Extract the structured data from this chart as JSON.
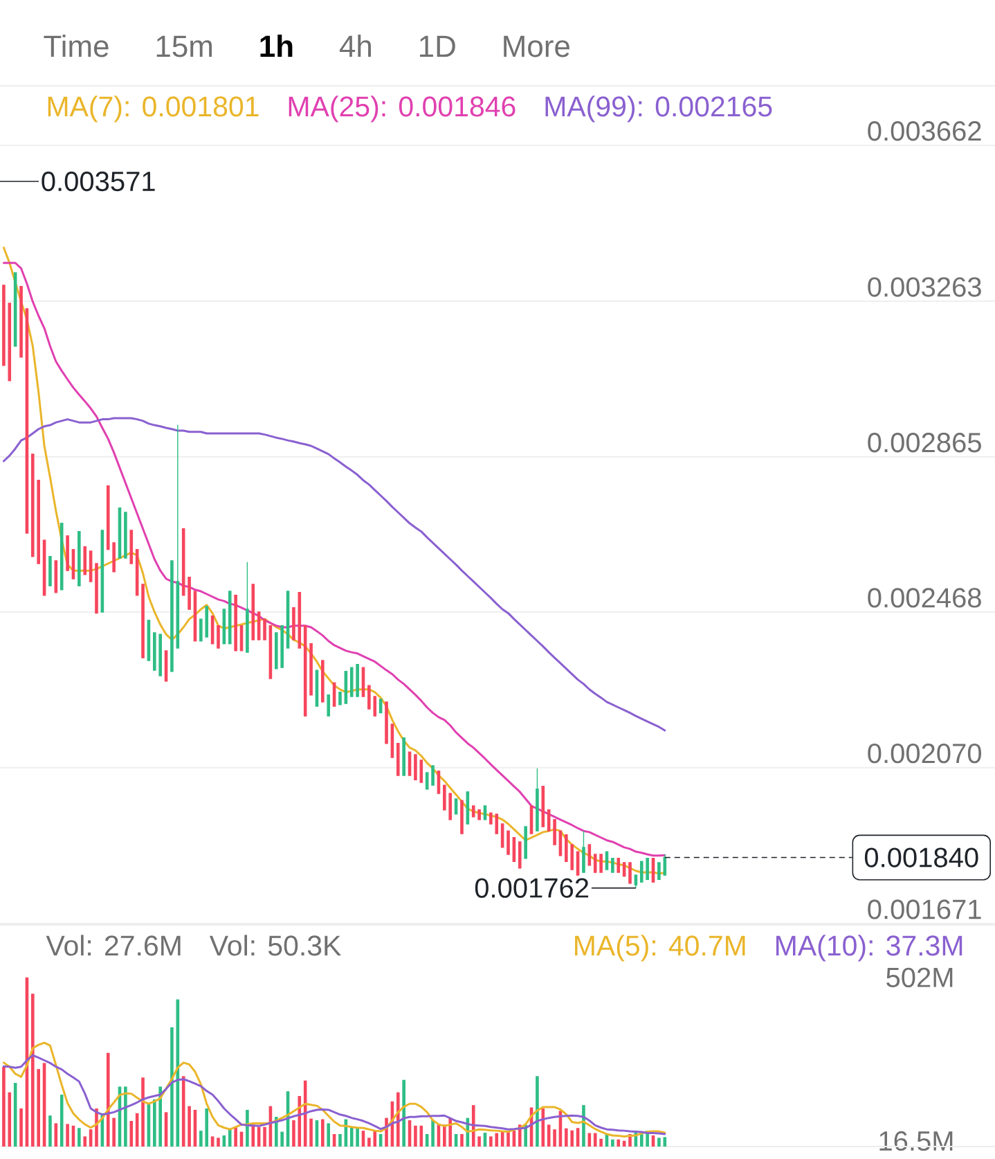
{
  "chart_data": [
    {
      "type": "candlestick",
      "categories": [
        null,
        null,
        null,
        null,
        null,
        null,
        null,
        null,
        null,
        null,
        null,
        null,
        null,
        null,
        null,
        null,
        null,
        null,
        null,
        null,
        null,
        null,
        null,
        null,
        null,
        null,
        null,
        null,
        null,
        null,
        null,
        null,
        null,
        null,
        null,
        null,
        null,
        null,
        null,
        null,
        null,
        null,
        null,
        null,
        null,
        null,
        null,
        null,
        null,
        null,
        null,
        null,
        null,
        null,
        null,
        null,
        null,
        null,
        null,
        null,
        null,
        null,
        null,
        null,
        null,
        null,
        null,
        null,
        null,
        null,
        null,
        null,
        null,
        null,
        null,
        null,
        null,
        null,
        null,
        null,
        null,
        null,
        null,
        null,
        null,
        null,
        null,
        null,
        null,
        null,
        null,
        null,
        null,
        null,
        null,
        null,
        null,
        null,
        null,
        null,
        null,
        null,
        null,
        null,
        null,
        null,
        null,
        null,
        null,
        null,
        null,
        null,
        null,
        null,
        null
      ],
      "ohlc": [
        [
          0.003304,
          0.003304,
          0.003099,
          0.003099
        ],
        [
          0.003258,
          0.003258,
          0.00306,
          0.00306
        ],
        [
          0.003148,
          0.003336,
          0.003148,
          0.003336
        ],
        [
          0.003301,
          0.003301,
          0.00312,
          0.00312
        ],
        [
          0.003244,
          0.003244,
          0.00267,
          0.00267
        ],
        [
          0.002872,
          0.002872,
          0.00261,
          0.00261
        ],
        [
          0.002805,
          0.002805,
          0.002592,
          0.002592
        ],
        [
          0.002652,
          0.002652,
          0.002511,
          0.002511
        ],
        [
          0.002535,
          0.00261,
          0.002535,
          0.00261
        ],
        [
          0.002599,
          0.002599,
          0.002518,
          0.002518
        ],
        [
          0.002525,
          0.002695,
          0.002525,
          0.002695
        ],
        [
          0.002663,
          0.002663,
          0.002574,
          0.002574
        ],
        [
          0.002628,
          0.002628,
          0.002553,
          0.002553
        ],
        [
          0.002535,
          0.002674,
          0.002535,
          0.002674
        ],
        [
          0.002635,
          0.002635,
          0.002564,
          0.002564
        ],
        [
          0.002624,
          0.002624,
          0.002546,
          0.002546
        ],
        [
          0.002592,
          0.002592,
          0.002465,
          0.002465
        ],
        [
          0.002468,
          0.002677,
          0.002468,
          0.002677
        ],
        [
          0.002791,
          0.002791,
          0.002628,
          0.002628
        ],
        [
          0.002645,
          0.002645,
          0.002571,
          0.002571
        ],
        [
          0.002606,
          0.002734,
          0.002606,
          0.002734
        ],
        [
          0.002606,
          0.002723,
          0.002606,
          0.002723
        ],
        [
          0.002677,
          0.002677,
          0.002592,
          0.002592
        ],
        [
          0.002628,
          0.002628,
          0.002511,
          0.002511
        ],
        [
          0.002539,
          0.002539,
          0.002351,
          0.002351
        ],
        [
          0.002344,
          0.002447,
          0.002344,
          0.002447
        ],
        [
          0.002319,
          0.002415,
          0.002319,
          0.002415
        ],
        [
          0.002305,
          0.002411,
          0.002305,
          0.002411
        ],
        [
          0.002369,
          0.002369,
          0.002291,
          0.002291
        ],
        [
          0.002316,
          0.002599,
          0.002316,
          0.002599
        ],
        [
          0.002376,
          0.002946,
          0.002376,
          0.002546
        ],
        [
          0.002681,
          0.002681,
          0.002511,
          0.002511
        ],
        [
          0.002557,
          0.002557,
          0.002475,
          0.002475
        ],
        [
          0.002521,
          0.002521,
          0.002394,
          0.002394
        ],
        [
          0.002394,
          0.00245,
          0.002394,
          0.00245
        ],
        [
          0.002404,
          0.002482,
          0.002404,
          0.002482
        ],
        [
          0.002458,
          0.002458,
          0.002387,
          0.002387
        ],
        [
          0.002433,
          0.002433,
          0.002376,
          0.002376
        ],
        [
          0.002387,
          0.002475,
          0.002387,
          0.002475
        ],
        [
          0.002387,
          0.002521,
          0.002387,
          0.002521
        ],
        [
          0.002511,
          0.002511,
          0.002369,
          0.002369
        ],
        [
          0.002433,
          0.002433,
          0.002369,
          0.002369
        ],
        [
          0.002365,
          0.002596,
          0.002365,
          0.002475
        ],
        [
          0.002539,
          0.002539,
          0.002397,
          0.002397
        ],
        [
          0.002468,
          0.002468,
          0.002397,
          0.002397
        ],
        [
          0.00245,
          0.00245,
          0.002397,
          0.002397
        ],
        [
          0.002433,
          0.002433,
          0.002298,
          0.002298
        ],
        [
          0.002323,
          0.002415,
          0.002323,
          0.002415
        ],
        [
          0.002326,
          0.002433,
          0.002326,
          0.002433
        ],
        [
          0.002376,
          0.002521,
          0.002376,
          0.002521
        ],
        [
          0.002479,
          0.002479,
          0.002397,
          0.002397
        ],
        [
          0.002518,
          0.002518,
          0.002376,
          0.002376
        ],
        [
          0.002433,
          0.002433,
          0.002202,
          0.002202
        ],
        [
          0.002387,
          0.002387,
          0.002256,
          0.002256
        ],
        [
          0.002227,
          0.002319,
          0.002227,
          0.002319
        ],
        [
          0.002344,
          0.002344,
          0.002238,
          0.002238
        ],
        [
          0.002202,
          0.002256,
          0.002202,
          0.002256
        ],
        [
          0.002287,
          0.002287,
          0.002227,
          0.002227
        ],
        [
          0.002231,
          0.002263,
          0.002231,
          0.002263
        ],
        [
          0.002234,
          0.002316,
          0.002234,
          0.002316
        ],
        [
          0.002252,
          0.002326,
          0.002252,
          0.002326
        ],
        [
          0.002252,
          0.002334,
          0.002252,
          0.002334
        ],
        [
          0.002326,
          0.002326,
          0.002252,
          0.002252
        ],
        [
          0.00228,
          0.00228,
          0.00222,
          0.00222
        ],
        [
          0.002252,
          0.002252,
          0.002202,
          0.002202
        ],
        [
          0.00221,
          0.002245,
          0.00221,
          0.002245
        ],
        [
          0.002238,
          0.002238,
          0.002132,
          0.002132
        ],
        [
          0.002181,
          0.002181,
          0.002096,
          0.002096
        ],
        [
          0.002132,
          0.002132,
          0.00205,
          0.00205
        ],
        [
          0.00205,
          0.002146,
          0.00205,
          0.002146
        ],
        [
          0.00211,
          0.00211,
          0.00205,
          0.00205
        ],
        [
          0.002103,
          0.002103,
          0.002039,
          0.002039
        ],
        [
          0.002089,
          0.002089,
          0.002032,
          0.002032
        ],
        [
          0.002015,
          0.002057,
          0.002015,
          0.002057
        ],
        [
          0.002025,
          0.002075,
          0.002025,
          0.002075
        ],
        [
          0.002061,
          0.002061,
          0.002004,
          0.002004
        ],
        [
          0.002025,
          0.002025,
          0.001962,
          0.001962
        ],
        [
          0.002004,
          0.002004,
          0.001937,
          0.001937
        ],
        [
          0.001951,
          0.00199,
          0.001951,
          0.00199
        ],
        [
          0.001986,
          0.001986,
          0.001901,
          0.001901
        ],
        [
          0.001926,
          0.002008,
          0.001926,
          0.002008
        ],
        [
          0.001972,
          0.001972,
          0.001944,
          0.001944
        ],
        [
          0.001962,
          0.001962,
          0.001937,
          0.001937
        ],
        [
          0.001937,
          0.001972,
          0.001937,
          0.001972
        ],
        [
          0.001954,
          0.001954,
          0.001926,
          0.001926
        ],
        [
          0.001951,
          0.001951,
          0.001901,
          0.001901
        ],
        [
          0.001926,
          0.001926,
          0.001866,
          0.001866
        ],
        [
          0.001908,
          0.001908,
          0.001848,
          0.001848
        ],
        [
          0.001891,
          0.001891,
          0.00183,
          0.00183
        ],
        [
          0.00188,
          0.00188,
          0.001813,
          0.001813
        ],
        [
          0.001838,
          0.001919,
          0.001838,
          0.001919
        ],
        [
          0.001972,
          0.001972,
          0.001901,
          0.001901
        ],
        [
          0.001908,
          0.002068,
          0.001908,
          0.002015
        ],
        [
          0.002022,
          0.002022,
          0.001919,
          0.001919
        ],
        [
          0.001962,
          0.001962,
          0.001908,
          0.001908
        ],
        [
          0.001937,
          0.001937,
          0.001873,
          0.001873
        ],
        [
          0.001908,
          0.001908,
          0.001845,
          0.001845
        ],
        [
          0.001898,
          0.001898,
          0.00183,
          0.00183
        ],
        [
          0.001873,
          0.001873,
          0.001809,
          0.001809
        ],
        [
          0.001855,
          0.001855,
          0.001795,
          0.001795
        ],
        [
          0.001802,
          0.001908,
          0.001802,
          0.001866
        ],
        [
          0.001873,
          0.001873,
          0.00182,
          0.00182
        ],
        [
          0.001848,
          0.001848,
          0.001802,
          0.001802
        ],
        [
          0.001848,
          0.001848,
          0.001802,
          0.001802
        ],
        [
          0.001809,
          0.001855,
          0.001809,
          0.001855
        ],
        [
          0.001802,
          0.001838,
          0.001802,
          0.001838
        ],
        [
          0.001838,
          0.001838,
          0.001802,
          0.001802
        ],
        [
          0.001827,
          0.001827,
          0.001792,
          0.001792
        ],
        [
          0.001827,
          0.001827,
          0.001774,
          0.001774
        ],
        [
          0.00177,
          0.001795,
          0.001762,
          0.001795
        ],
        [
          0.001777,
          0.00183,
          0.001777,
          0.00183
        ],
        [
          0.001784,
          0.001838,
          0.001784,
          0.001838
        ],
        [
          0.001838,
          0.001838,
          0.001777,
          0.001777
        ],
        [
          0.001784,
          0.001827,
          0.001784,
          0.001827
        ],
        [
          0.001795,
          0.001848,
          0.001795,
          0.00184
        ]
      ],
      "colors": [
        "#f6465d",
        "#f6465d",
        "#2ebd85",
        "#f6465d",
        "#f6465d",
        "#f6465d",
        "#f6465d",
        "#f6465d",
        "#2ebd85",
        "#f6465d",
        "#2ebd85",
        "#f6465d",
        "#f6465d",
        "#2ebd85",
        "#f6465d",
        "#f6465d",
        "#f6465d",
        "#2ebd85",
        "#f6465d",
        "#f6465d",
        "#2ebd85",
        "#2ebd85",
        "#f6465d",
        "#f6465d",
        "#f6465d",
        "#2ebd85",
        "#2ebd85",
        "#2ebd85",
        "#f6465d",
        "#2ebd85",
        "#2ebd85",
        "#f6465d",
        "#f6465d",
        "#f6465d",
        "#2ebd85",
        "#2ebd85",
        "#f6465d",
        "#f6465d",
        "#2ebd85",
        "#2ebd85",
        "#f6465d",
        "#f6465d",
        "#2ebd85",
        "#f6465d",
        "#f6465d",
        "#f6465d",
        "#f6465d",
        "#2ebd85",
        "#2ebd85",
        "#2ebd85",
        "#f6465d",
        "#f6465d",
        "#f6465d",
        "#f6465d",
        "#2ebd85",
        "#f6465d",
        "#2ebd85",
        "#f6465d",
        "#2ebd85",
        "#2ebd85",
        "#2ebd85",
        "#2ebd85",
        "#f6465d",
        "#f6465d",
        "#f6465d",
        "#2ebd85",
        "#f6465d",
        "#f6465d",
        "#f6465d",
        "#2ebd85",
        "#f6465d",
        "#f6465d",
        "#f6465d",
        "#2ebd85",
        "#2ebd85",
        "#f6465d",
        "#f6465d",
        "#f6465d",
        "#2ebd85",
        "#f6465d",
        "#2ebd85",
        "#f6465d",
        "#f6465d",
        "#2ebd85",
        "#f6465d",
        "#f6465d",
        "#f6465d",
        "#f6465d",
        "#f6465d",
        "#f6465d",
        "#2ebd85",
        "#f6465d",
        "#2ebd85",
        "#f6465d",
        "#f6465d",
        "#f6465d",
        "#f6465d",
        "#f6465d",
        "#f6465d",
        "#f6465d",
        "#2ebd85",
        "#f6465d",
        "#f6465d",
        "#f6465d",
        "#2ebd85",
        "#2ebd85",
        "#f6465d",
        "#f6465d",
        "#f6465d",
        "#2ebd85",
        "#2ebd85",
        "#2ebd85",
        "#f6465d",
        "#2ebd85",
        "#2ebd85"
      ],
      "series": [
        {
          "name": "MA(7): 0.001801",
          "type": "line",
          "color": "#eab52a",
          "values": [
            0.0034,
            0.003361,
            0.003311,
            0.003262,
            0.003216,
            0.003148,
            0.003031,
            0.002893,
            0.002812,
            0.002727,
            0.002652,
            0.002589,
            0.002574,
            0.002574,
            0.002574,
            0.002574,
            0.002578,
            0.002585,
            0.002592,
            0.002599,
            0.002606,
            0.002613,
            0.00262,
            0.002613,
            0.002567,
            0.002507,
            0.002468,
            0.002436,
            0.002411,
            0.002397,
            0.002411,
            0.002429,
            0.00245,
            0.002461,
            0.002475,
            0.002486,
            0.002465,
            0.002433,
            0.002426,
            0.002429,
            0.002433,
            0.002436,
            0.00244,
            0.002443,
            0.002447,
            0.00245,
            0.00244,
            0.002429,
            0.002422,
            0.002411,
            0.002397,
            0.00239,
            0.00238,
            0.002362,
            0.002341,
            0.002316,
            0.002298,
            0.00228,
            0.00227,
            0.002263,
            0.002266,
            0.00227,
            0.00227,
            0.00227,
            0.002263,
            0.002249,
            0.002227,
            0.002192,
            0.002163,
            0.002139,
            0.002121,
            0.002114,
            0.0021,
            0.002082,
            0.002068,
            0.00205,
            0.002036,
            0.002018,
            0.002001,
            0.001983,
            0.001965,
            0.001958,
            0.001954,
            0.001951,
            0.001947,
            0.001944,
            0.001937,
            0.001926,
            0.001912,
            0.001898,
            0.001884,
            0.001891,
            0.001898,
            0.001905,
            0.001908,
            0.001912,
            0.001908,
            0.001887,
            0.001873,
            0.001862,
            0.001852,
            0.001845,
            0.001834,
            0.00183,
            0.00183,
            0.001827,
            0.001823,
            0.00182,
            0.001813,
            0.001806,
            0.001802,
            0.001802,
            0.001802,
            0.001799,
            0.001801
          ]
        },
        {
          "name": "MA(25): 0.001846",
          "type": "line",
          "color": "#e040b0",
          "values": [
            0.003361,
            0.003361,
            0.003361,
            0.003347,
            0.003308,
            0.003262,
            0.003226,
            0.003194,
            0.003148,
            0.003109,
            0.003085,
            0.003063,
            0.003042,
            0.003024,
            0.003007,
            0.002989,
            0.002968,
            0.002939,
            0.002911,
            0.002876,
            0.002837,
            0.002798,
            0.002759,
            0.00272,
            0.002681,
            0.002642,
            0.002603,
            0.002574,
            0.002553,
            0.002546,
            0.002543,
            0.002535,
            0.002532,
            0.002525,
            0.002521,
            0.002514,
            0.002507,
            0.0025,
            0.002496,
            0.002489,
            0.002486,
            0.002479,
            0.002472,
            0.002465,
            0.002458,
            0.002447,
            0.00244,
            0.002433,
            0.002429,
            0.002429,
            0.002433,
            0.002433,
            0.002433,
            0.002429,
            0.002419,
            0.002408,
            0.002394,
            0.002383,
            0.002376,
            0.002369,
            0.002365,
            0.002362,
            0.002355,
            0.002348,
            0.002341,
            0.00233,
            0.002319,
            0.002309,
            0.002295,
            0.002284,
            0.00227,
            0.002256,
            0.002241,
            0.002224,
            0.00221,
            0.002199,
            0.002192,
            0.002178,
            0.00216,
            0.002146,
            0.002132,
            0.002121,
            0.002107,
            0.002093,
            0.002078,
            0.002064,
            0.00205,
            0.002036,
            0.002022,
            0.002008,
            0.00199,
            0.001972,
            0.001965,
            0.001958,
            0.001951,
            0.001944,
            0.001937,
            0.00193,
            0.001923,
            0.001915,
            0.001908,
            0.001905,
            0.001898,
            0.001891,
            0.001884,
            0.00188,
            0.001873,
            0.001866,
            0.001862,
            0.001855,
            0.001852,
            0.001848,
            0.001845,
            0.001845,
            0.001846
          ]
        },
        {
          "name": "MA(99): 0.002165",
          "type": "line",
          "color": "#8a60d0",
          "values": [
            0.002854,
            0.002868,
            0.002886,
            0.002907,
            0.002914,
            0.002925,
            0.002936,
            0.002943,
            0.002946,
            0.002953,
            0.002957,
            0.002961,
            0.002957,
            0.002953,
            0.002953,
            0.002953,
            0.002957,
            0.002961,
            0.002961,
            0.002964,
            0.002964,
            0.002964,
            0.002964,
            0.002961,
            0.002957,
            0.00295,
            0.002946,
            0.002943,
            0.002939,
            0.002936,
            0.002932,
            0.002932,
            0.002929,
            0.002929,
            0.002929,
            0.002925,
            0.002925,
            0.002925,
            0.002925,
            0.002925,
            0.002925,
            0.002925,
            0.002925,
            0.002925,
            0.002925,
            0.002922,
            0.002918,
            0.002914,
            0.002911,
            0.002907,
            0.002904,
            0.0029,
            0.002897,
            0.002893,
            0.002886,
            0.002879,
            0.002872,
            0.002861,
            0.002851,
            0.00284,
            0.00283,
            0.002819,
            0.002805,
            0.002794,
            0.00278,
            0.002766,
            0.002752,
            0.002737,
            0.002723,
            0.002709,
            0.002695,
            0.002684,
            0.002674,
            0.002659,
            0.002645,
            0.002631,
            0.002617,
            0.002603,
            0.002589,
            0.002574,
            0.00256,
            0.002546,
            0.002532,
            0.002518,
            0.002504,
            0.002489,
            0.002475,
            0.002465,
            0.00245,
            0.002436,
            0.002422,
            0.002408,
            0.002394,
            0.00238,
            0.002365,
            0.002351,
            0.002337,
            0.002323,
            0.002309,
            0.002295,
            0.002284,
            0.00227,
            0.002259,
            0.002249,
            0.002238,
            0.002231,
            0.002224,
            0.002217,
            0.00221,
            0.002202,
            0.002195,
            0.002188,
            0.002181,
            0.002174,
            0.002165
          ]
        }
      ],
      "ylim": [
        0.001671,
        0.003814
      ],
      "yticks": [
        0.001671,
        {
          "value": 0.00207,
          "label": "0.002070"
        },
        0.002468,
        0.002865,
        0.003263,
        0.003662
      ],
      "grid": "y",
      "legend": "top",
      "tick_labels": "y",
      "annotations": [
        "Time",
        "15m",
        "1h",
        "4h",
        "1D",
        "More",
        "0.003571",
        "0.001762"
      ],
      "ref_lines": [
        {
          "axis": "y",
          "value": 0.00184,
          "label": "0.001840",
          "line_style": "dashed",
          "color": "#1e2329"
        }
      ]
    },
    {
      "type": "bar",
      "categories": [
        null,
        null,
        null,
        null,
        null,
        null,
        null,
        null,
        null,
        null,
        null,
        null,
        null,
        null,
        null,
        null,
        null,
        null,
        null,
        null,
        null,
        null,
        null,
        null,
        null,
        null,
        null,
        null,
        null,
        null,
        null,
        null,
        null,
        null,
        null,
        null,
        null,
        null,
        null,
        null,
        null,
        null,
        null,
        null,
        null,
        null,
        null,
        null,
        null,
        null,
        null,
        null,
        null,
        null,
        null,
        null,
        null,
        null,
        null,
        null,
        null,
        null,
        null,
        null,
        null,
        null,
        null,
        null,
        null,
        null,
        null,
        null,
        null,
        null,
        null,
        null,
        null,
        null,
        null,
        null,
        null,
        null,
        null,
        null,
        null,
        null,
        null,
        null,
        null,
        null,
        null,
        null,
        null,
        null,
        null,
        null,
        null,
        null,
        null,
        null,
        null,
        null,
        null,
        null,
        null,
        null,
        null,
        null,
        null,
        null,
        null,
        null,
        null,
        null,
        null
      ],
      "series": [
        {
          "type": "bar",
          "values": [
            237,
            161,
            189,
            113,
            502,
            454,
            230,
            248,
            92,
            69,
            154,
            67,
            62,
            55,
            30,
            51,
            113,
            99,
            278,
            85,
            178,
            178,
            76,
            99,
            205,
            129,
            140,
            178,
            102,
            354,
            437,
            209,
            120,
            109,
            47,
            113,
            30,
            26,
            33,
            51,
            58,
            44,
            109,
            65,
            58,
            58,
            120,
            88,
            44,
            164,
            78,
            150,
            196,
            83,
            78,
            81,
            69,
            37,
            37,
            81,
            58,
            54,
            47,
            26,
            47,
            37,
            85,
            134,
            161,
            198,
            78,
            62,
            62,
            37,
            78,
            65,
            65,
            85,
            37,
            37,
            85,
            123,
            30,
            41,
            30,
            40,
            44,
            44,
            47,
            65,
            65,
            116,
            209,
            113,
            65,
            51,
            106,
            54,
            48,
            55,
            123,
            40,
            40,
            23,
            37,
            21,
            21,
            17,
            37,
            47,
            37,
            47,
            33,
            26,
            28
          ],
          "colors": [
            "#f6465d",
            "#f6465d",
            "#2ebd85",
            "#f6465d",
            "#f6465d",
            "#f6465d",
            "#f6465d",
            "#f6465d",
            "#2ebd85",
            "#f6465d",
            "#2ebd85",
            "#f6465d",
            "#f6465d",
            "#2ebd85",
            "#f6465d",
            "#f6465d",
            "#f6465d",
            "#2ebd85",
            "#f6465d",
            "#f6465d",
            "#2ebd85",
            "#2ebd85",
            "#f6465d",
            "#f6465d",
            "#f6465d",
            "#2ebd85",
            "#2ebd85",
            "#2ebd85",
            "#f6465d",
            "#2ebd85",
            "#2ebd85",
            "#f6465d",
            "#f6465d",
            "#f6465d",
            "#2ebd85",
            "#2ebd85",
            "#f6465d",
            "#f6465d",
            "#2ebd85",
            "#2ebd85",
            "#f6465d",
            "#f6465d",
            "#2ebd85",
            "#f6465d",
            "#f6465d",
            "#f6465d",
            "#f6465d",
            "#2ebd85",
            "#2ebd85",
            "#2ebd85",
            "#f6465d",
            "#f6465d",
            "#f6465d",
            "#f6465d",
            "#2ebd85",
            "#f6465d",
            "#2ebd85",
            "#f6465d",
            "#2ebd85",
            "#2ebd85",
            "#2ebd85",
            "#2ebd85",
            "#f6465d",
            "#f6465d",
            "#f6465d",
            "#2ebd85",
            "#f6465d",
            "#f6465d",
            "#f6465d",
            "#2ebd85",
            "#f6465d",
            "#f6465d",
            "#f6465d",
            "#2ebd85",
            "#2ebd85",
            "#f6465d",
            "#f6465d",
            "#f6465d",
            "#2ebd85",
            "#f6465d",
            "#2ebd85",
            "#f6465d",
            "#f6465d",
            "#2ebd85",
            "#f6465d",
            "#f6465d",
            "#f6465d",
            "#f6465d",
            "#f6465d",
            "#f6465d",
            "#2ebd85",
            "#f6465d",
            "#2ebd85",
            "#f6465d",
            "#f6465d",
            "#f6465d",
            "#f6465d",
            "#f6465d",
            "#f6465d",
            "#f6465d",
            "#2ebd85",
            "#f6465d",
            "#f6465d",
            "#f6465d",
            "#2ebd85",
            "#2ebd85",
            "#f6465d",
            "#f6465d",
            "#f6465d",
            "#2ebd85",
            "#2ebd85",
            "#2ebd85",
            "#f6465d",
            "#2ebd85",
            "#2ebd85"
          ]
        },
        {
          "name": "MA(5): 40.7M",
          "type": "line",
          "color": "#eab52a",
          "values": [
            249,
            237,
            216,
            207,
            241,
            292,
            302,
            308,
            300,
            242,
            183,
            129,
            98,
            80,
            66,
            56,
            66,
            84,
            110,
            131,
            153,
            158,
            157,
            145,
            134,
            127,
            134,
            143,
            172,
            201,
            234,
            249,
            244,
            222,
            185,
            127,
            88,
            63,
            56,
            51,
            58,
            65,
            66,
            69,
            69,
            69,
            70,
            77,
            85,
            94,
            105,
            116,
            127,
            124,
            121,
            109,
            91,
            74,
            62,
            61,
            58,
            56,
            55,
            51,
            47,
            45,
            55,
            78,
            102,
            118,
            127,
            127,
            118,
            102,
            78,
            66,
            61,
            65,
            69,
            58,
            44,
            47,
            51,
            50,
            48,
            47,
            45,
            44,
            50,
            55,
            66,
            91,
            107,
            117,
            117,
            117,
            110,
            96,
            73,
            70,
            74,
            63,
            52,
            44,
            37,
            33,
            32,
            30,
            32,
            33,
            39,
            44,
            45,
            45,
            41
          ]
        },
        {
          "name": "MA(10): 37.3M",
          "type": "line",
          "color": "#8a60d0",
          "values": [
            238,
            237,
            234,
            237,
            256,
            271,
            264,
            256,
            248,
            237,
            229,
            216,
            205,
            193,
            157,
            113,
            102,
            95,
            98,
            102,
            109,
            116,
            123,
            131,
            140,
            146,
            150,
            154,
            171,
            190,
            198,
            200,
            194,
            187,
            179,
            165,
            154,
            135,
            113,
            96,
            81,
            65,
            63,
            62,
            61,
            65,
            70,
            74,
            78,
            84,
            90,
            94,
            99,
            105,
            109,
            110,
            109,
            102,
            95,
            91,
            85,
            81,
            76,
            69,
            61,
            52,
            58,
            69,
            74,
            84,
            88,
            88,
            90,
            90,
            91,
            91,
            92,
            84,
            76,
            72,
            67,
            63,
            62,
            61,
            58,
            56,
            54,
            51,
            52,
            54,
            55,
            65,
            76,
            81,
            85,
            88,
            90,
            91,
            92,
            91,
            88,
            77,
            63,
            56,
            51,
            50,
            48,
            47,
            45,
            44,
            43,
            40,
            40,
            39,
            37
          ]
        }
      ],
      "ylim": [
        0,
        658
      ],
      "yticks": [
        {
          "value": 16.5,
          "label": "16.5M"
        },
        {
          "value": 502,
          "label": "502M"
        }
      ],
      "legend": "top right",
      "tick_labels": "y",
      "annotations": [
        "Vol: 27.6M",
        "Vol: 50.3K"
      ]
    }
  ]
}
